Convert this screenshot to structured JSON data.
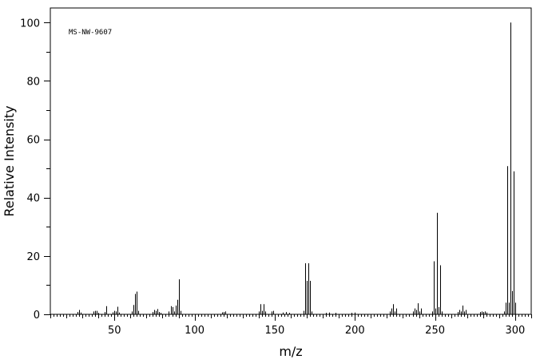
{
  "chart_data": {
    "type": "bar",
    "title": "",
    "annotation": "MS-NW-9607",
    "xlabel": "m/z",
    "ylabel": "Relative Intensity",
    "xlim": [
      10,
      310
    ],
    "ylim": [
      0,
      105
    ],
    "x_ticks": [
      50,
      100,
      150,
      200,
      250,
      300
    ],
    "y_ticks": [
      0,
      20,
      40,
      60,
      80,
      100
    ],
    "grid": false,
    "peaks": [
      {
        "x": 27,
        "y": 0.8
      },
      {
        "x": 28,
        "y": 1.5
      },
      {
        "x": 29,
        "y": 0.6
      },
      {
        "x": 37,
        "y": 1.0
      },
      {
        "x": 38,
        "y": 1.2
      },
      {
        "x": 39,
        "y": 1.2
      },
      {
        "x": 40,
        "y": 0.5
      },
      {
        "x": 44,
        "y": 0.8
      },
      {
        "x": 45,
        "y": 2.8
      },
      {
        "x": 49,
        "y": 0.7
      },
      {
        "x": 50,
        "y": 1.2
      },
      {
        "x": 51,
        "y": 1.0
      },
      {
        "x": 52,
        "y": 2.6
      },
      {
        "x": 53,
        "y": 0.6
      },
      {
        "x": 61,
        "y": 1.0
      },
      {
        "x": 62,
        "y": 3.2
      },
      {
        "x": 63,
        "y": 7.0
      },
      {
        "x": 64,
        "y": 7.8
      },
      {
        "x": 65,
        "y": 1.2
      },
      {
        "x": 74,
        "y": 0.8
      },
      {
        "x": 75,
        "y": 1.5
      },
      {
        "x": 76,
        "y": 1.2
      },
      {
        "x": 77,
        "y": 1.8
      },
      {
        "x": 78,
        "y": 0.8
      },
      {
        "x": 79,
        "y": 0.5
      },
      {
        "x": 84,
        "y": 1.0
      },
      {
        "x": 85,
        "y": 2.8
      },
      {
        "x": 86,
        "y": 2.5
      },
      {
        "x": 87,
        "y": 1.0
      },
      {
        "x": 88,
        "y": 3.0
      },
      {
        "x": 89,
        "y": 5.0
      },
      {
        "x": 90,
        "y": 12.0
      },
      {
        "x": 91,
        "y": 1.2
      },
      {
        "x": 117,
        "y": 0.7
      },
      {
        "x": 118,
        "y": 0.8
      },
      {
        "x": 119,
        "y": 1.0
      },
      {
        "x": 140,
        "y": 1.0
      },
      {
        "x": 141,
        "y": 3.5
      },
      {
        "x": 142,
        "y": 1.2
      },
      {
        "x": 143,
        "y": 3.5
      },
      {
        "x": 144,
        "y": 1.0
      },
      {
        "x": 148,
        "y": 1.0
      },
      {
        "x": 149,
        "y": 1.2
      },
      {
        "x": 155,
        "y": 0.6
      },
      {
        "x": 157,
        "y": 0.8
      },
      {
        "x": 159,
        "y": 0.5
      },
      {
        "x": 168,
        "y": 1.2
      },
      {
        "x": 169,
        "y": 17.5
      },
      {
        "x": 170,
        "y": 11.5
      },
      {
        "x": 171,
        "y": 17.5
      },
      {
        "x": 172,
        "y": 11.5
      },
      {
        "x": 173,
        "y": 1.0
      },
      {
        "x": 182,
        "y": 0.5
      },
      {
        "x": 184,
        "y": 0.6
      },
      {
        "x": 188,
        "y": 0.5
      },
      {
        "x": 198,
        "y": 0.5
      },
      {
        "x": 200,
        "y": 0.6
      },
      {
        "x": 222,
        "y": 1.0
      },
      {
        "x": 223,
        "y": 2.0
      },
      {
        "x": 224,
        "y": 3.5
      },
      {
        "x": 225,
        "y": 1.0
      },
      {
        "x": 226,
        "y": 2.0
      },
      {
        "x": 236,
        "y": 1.0
      },
      {
        "x": 237,
        "y": 2.0
      },
      {
        "x": 238,
        "y": 1.5
      },
      {
        "x": 239,
        "y": 3.8
      },
      {
        "x": 240,
        "y": 1.0
      },
      {
        "x": 241,
        "y": 2.0
      },
      {
        "x": 248,
        "y": 1.0
      },
      {
        "x": 249,
        "y": 18.2
      },
      {
        "x": 250,
        "y": 2.0
      },
      {
        "x": 251,
        "y": 34.8
      },
      {
        "x": 252,
        "y": 2.5
      },
      {
        "x": 253,
        "y": 16.8
      },
      {
        "x": 254,
        "y": 1.0
      },
      {
        "x": 264,
        "y": 0.8
      },
      {
        "x": 265,
        "y": 1.5
      },
      {
        "x": 266,
        "y": 1.0
      },
      {
        "x": 267,
        "y": 3.0
      },
      {
        "x": 268,
        "y": 1.0
      },
      {
        "x": 269,
        "y": 1.5
      },
      {
        "x": 278,
        "y": 0.8
      },
      {
        "x": 279,
        "y": 1.0
      },
      {
        "x": 280,
        "y": 0.8
      },
      {
        "x": 281,
        "y": 1.0
      },
      {
        "x": 282,
        "y": 0.6
      },
      {
        "x": 293,
        "y": 1.0
      },
      {
        "x": 294,
        "y": 4.0
      },
      {
        "x": 295,
        "y": 50.8
      },
      {
        "x": 296,
        "y": 4.0
      },
      {
        "x": 297,
        "y": 100.0
      },
      {
        "x": 298,
        "y": 8.0
      },
      {
        "x": 299,
        "y": 49.0
      },
      {
        "x": 300,
        "y": 4.0
      }
    ]
  }
}
